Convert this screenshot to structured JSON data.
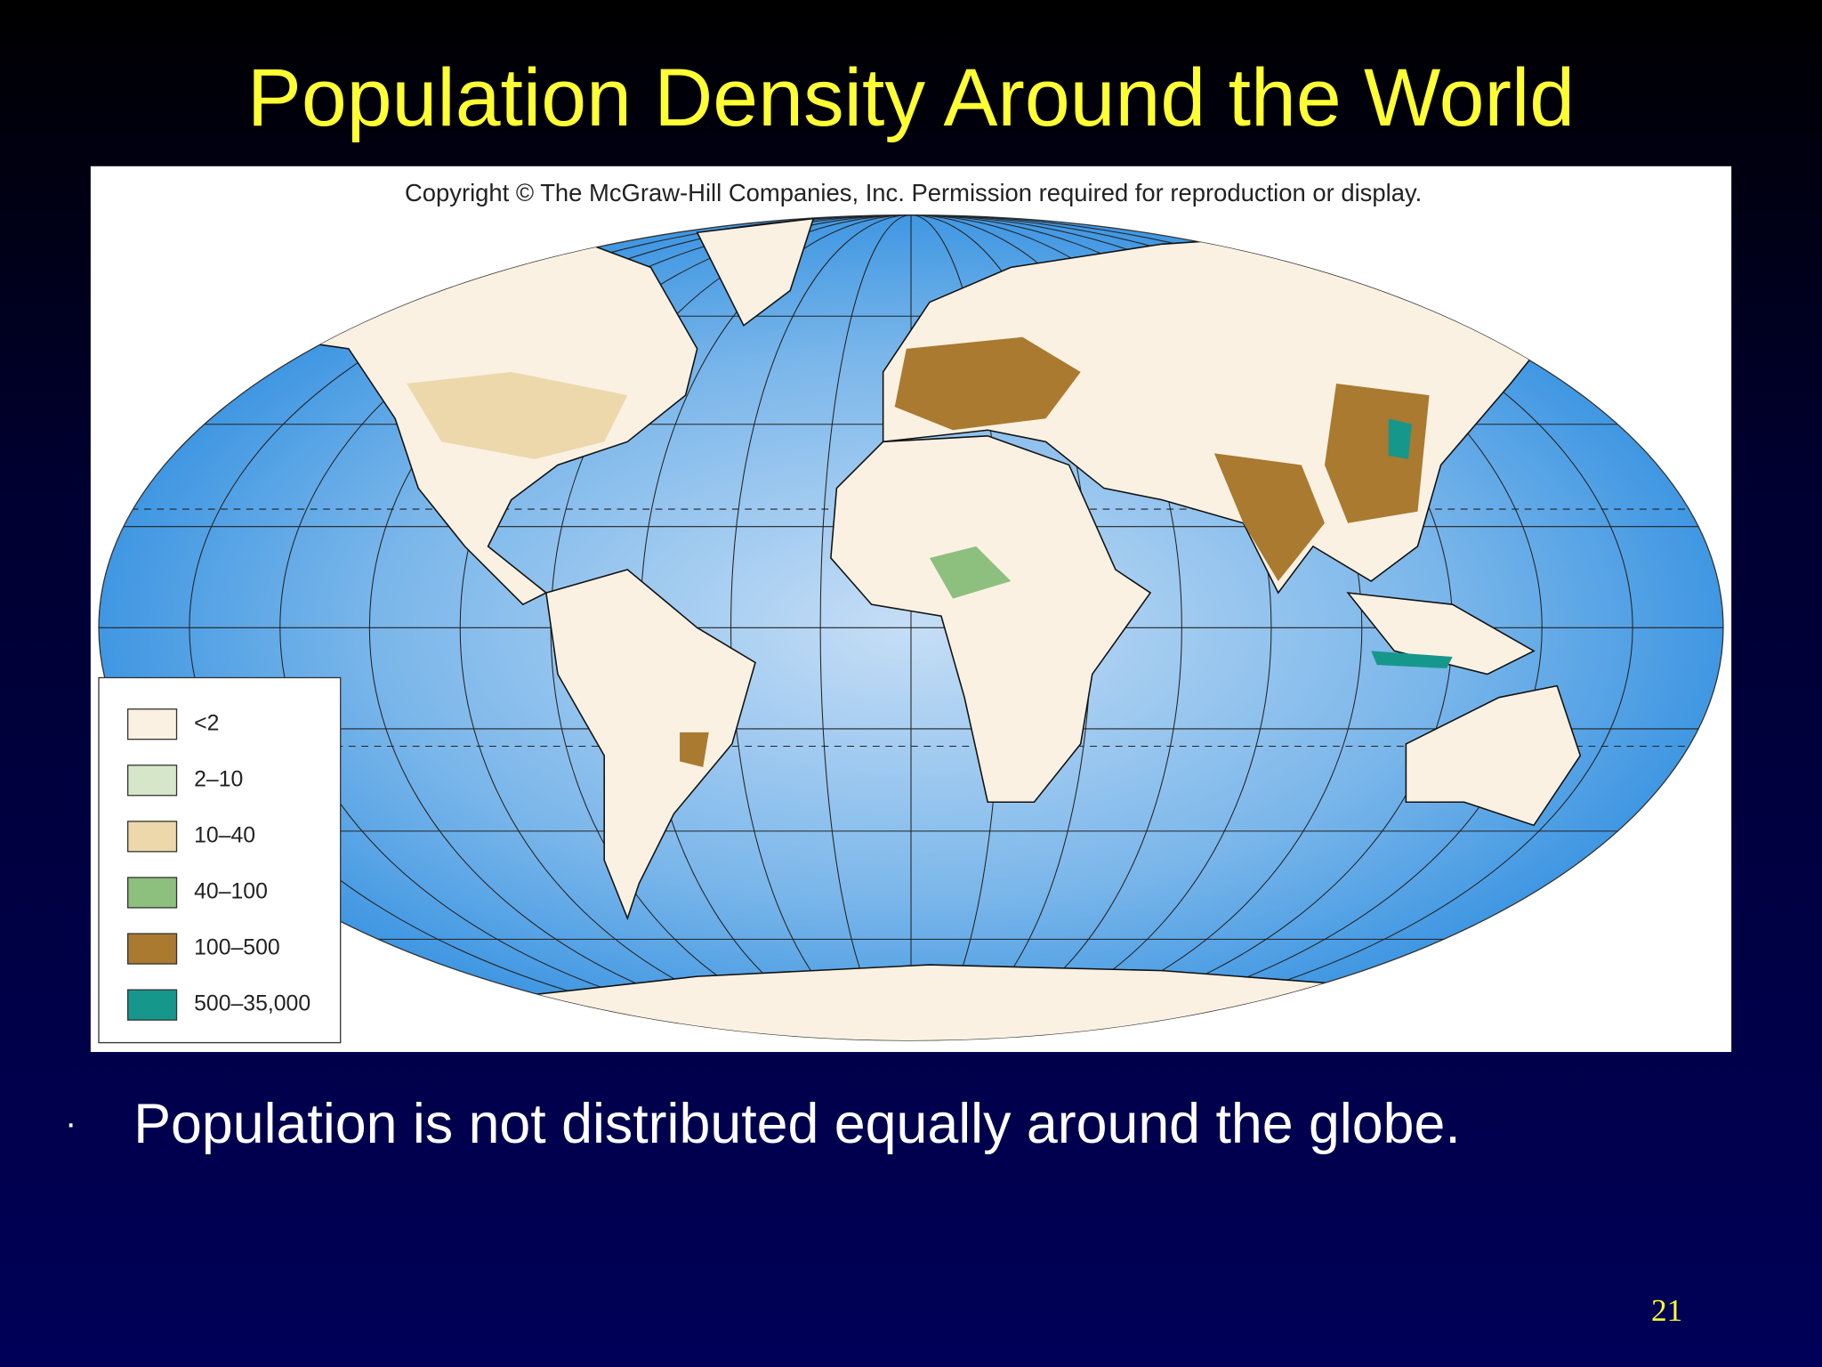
{
  "title": "Population Density Around the World",
  "map": {
    "copyright": "Copyright © The McGraw-Hill Companies, Inc. Permission required for reproduction or display.",
    "legend": [
      {
        "label": "<2",
        "color": "#fbf1e2"
      },
      {
        "label": "2–10",
        "color": "#d6e7c9"
      },
      {
        "label": "10–40",
        "color": "#ecd8ab"
      },
      {
        "label": "40–100",
        "color": "#8dc07f"
      },
      {
        "label": "100–500",
        "color": "#a97a30"
      },
      {
        "label": "500–35,000",
        "color": "#16978b"
      }
    ]
  },
  "bullets": [
    "Population is not distributed equally around the globe."
  ],
  "page_number": "21"
}
